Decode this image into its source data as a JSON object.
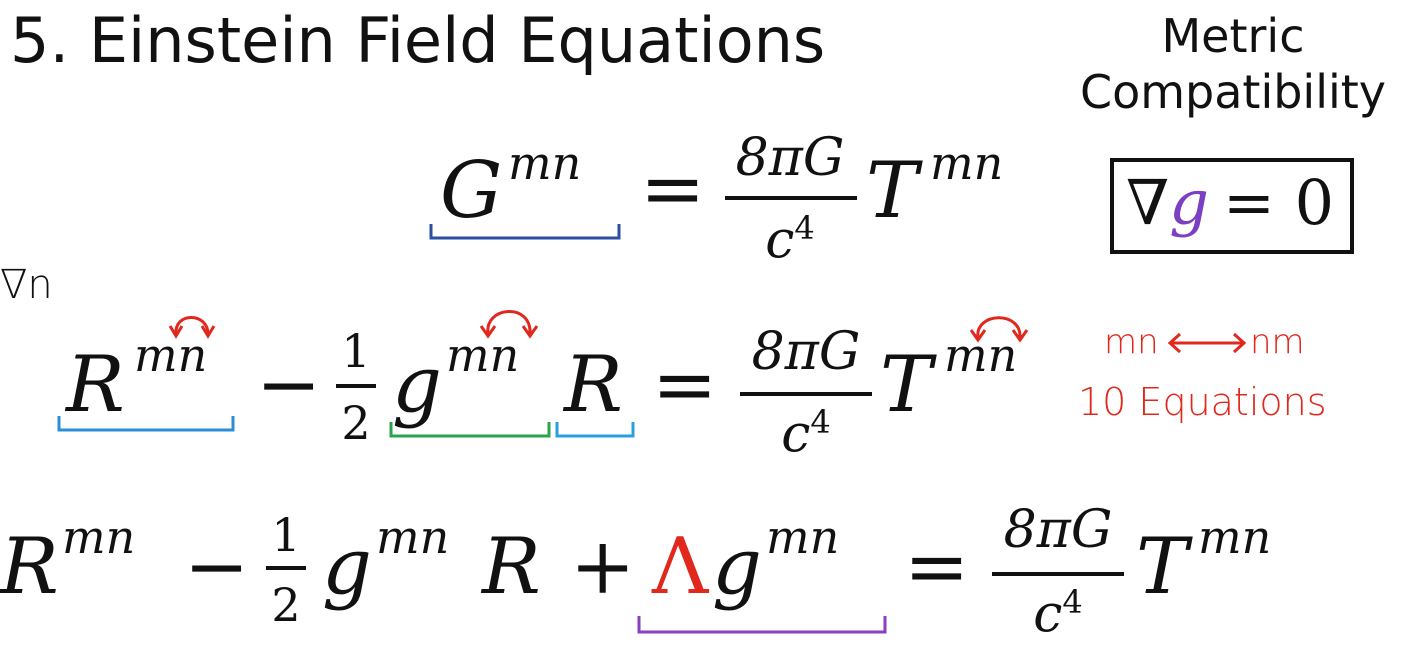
{
  "slide": {
    "title": "5. Einstein Field Equations",
    "side_note": {
      "line1": "Metric",
      "line2": "Compatibility"
    }
  },
  "equations": {
    "eq1": {
      "lhs": "G",
      "lhs_sup": "mn",
      "equals": "=",
      "num": "8πG",
      "den_base": "c",
      "den_exp": "4",
      "rhs": "T",
      "rhs_sup": "mn"
    },
    "eq2": {
      "R": "R",
      "R_sup": "mn",
      "minus": "−",
      "half_num": "1",
      "half_den": "2",
      "g": "g",
      "g_sup": "mn",
      "scalar_R": "R",
      "equals": "=",
      "num": "8πG",
      "den_base": "c",
      "den_exp": "4",
      "rhs": "T",
      "rhs_sup": "mn"
    },
    "eq3": {
      "R": "R",
      "R_sup": "mn",
      "minus": "−",
      "half_num": "1",
      "half_den": "2",
      "g": "g",
      "g_sup": "mn",
      "scalar_R": "R",
      "plus": "+",
      "lambda": "Λ",
      "lambda_g": "g",
      "lambda_g_sup": "mn",
      "equals": "=",
      "num": "8πG",
      "den_base": "c",
      "den_exp": "4",
      "rhs": "T",
      "rhs_sup": "mn"
    },
    "metric_box": {
      "nabla": "∇",
      "g": "g",
      "rest": "= 0"
    }
  },
  "annotations": {
    "nabla_n": "∇n",
    "swap_left": "mn",
    "swap_right": "nm",
    "equations_count": "10 Equations"
  },
  "colors": {
    "G_bracket": "#2b4fa3",
    "R_bracket": "#2a8fd6",
    "g_bracket": "#2aa34a",
    "scalar_R_bracket": "#2a9fe0",
    "lambda": "#e0281d",
    "lambda_bracket": "#8a3fc0",
    "g_in_box": "#7b3fc4",
    "annotation": "#e0281d"
  }
}
